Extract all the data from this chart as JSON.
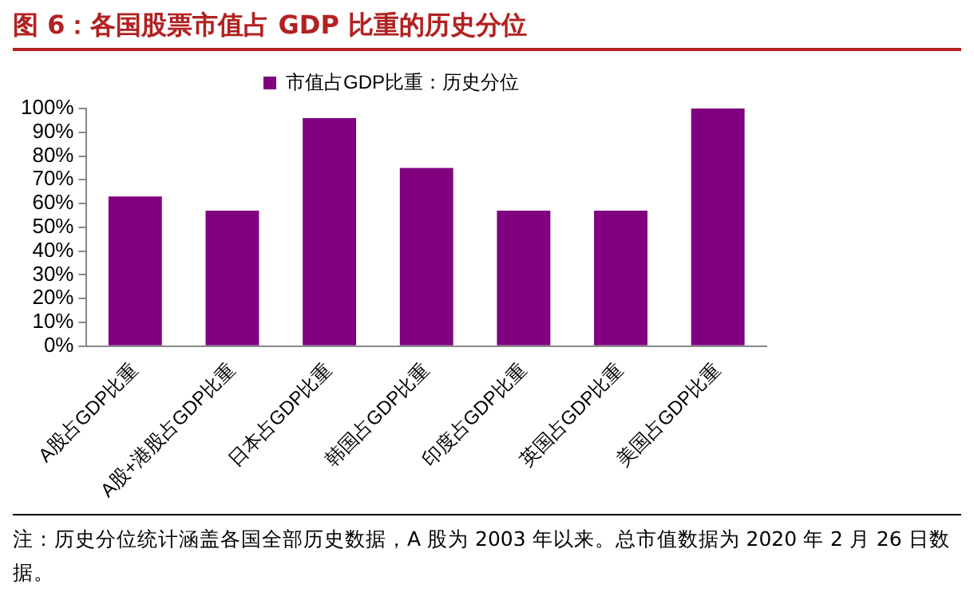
{
  "chart_data": {
    "type": "bar",
    "title": "图 6：各国股票市值占 GDP 比重的历史分位",
    "categories": [
      "A股占GDP比重",
      "A股+港股占GDP比重",
      "日本占GDP比重",
      "韩国占GDP比重",
      "印度占GDP比重",
      "英国占GDP比重",
      "美国占GDP比重"
    ],
    "series": [
      {
        "name": "市值占GDP比重：历史分位",
        "color": "#800080",
        "values": [
          63,
          57,
          96,
          75,
          57,
          57,
          100
        ]
      }
    ],
    "ylim": [
      0,
      100
    ],
    "yticks": [
      {
        "value": 0,
        "label": "0%"
      },
      {
        "value": 10,
        "label": "10%"
      },
      {
        "value": 20,
        "label": "20%"
      },
      {
        "value": 30,
        "label": "30%"
      },
      {
        "value": 40,
        "label": "40%"
      },
      {
        "value": 50,
        "label": "50%"
      },
      {
        "value": 60,
        "label": "60%"
      },
      {
        "value": 70,
        "label": "70%"
      },
      {
        "value": 80,
        "label": "80%"
      },
      {
        "value": 90,
        "label": "90%"
      },
      {
        "value": 100,
        "label": "100%"
      }
    ],
    "grid": false,
    "legend": "top",
    "annotations": [
      "注：历史分位统计涵盖各国全部历史数据，A 股为 2003 年以来。总市值数据为 2020 年 2 月 26 日数据。"
    ]
  }
}
